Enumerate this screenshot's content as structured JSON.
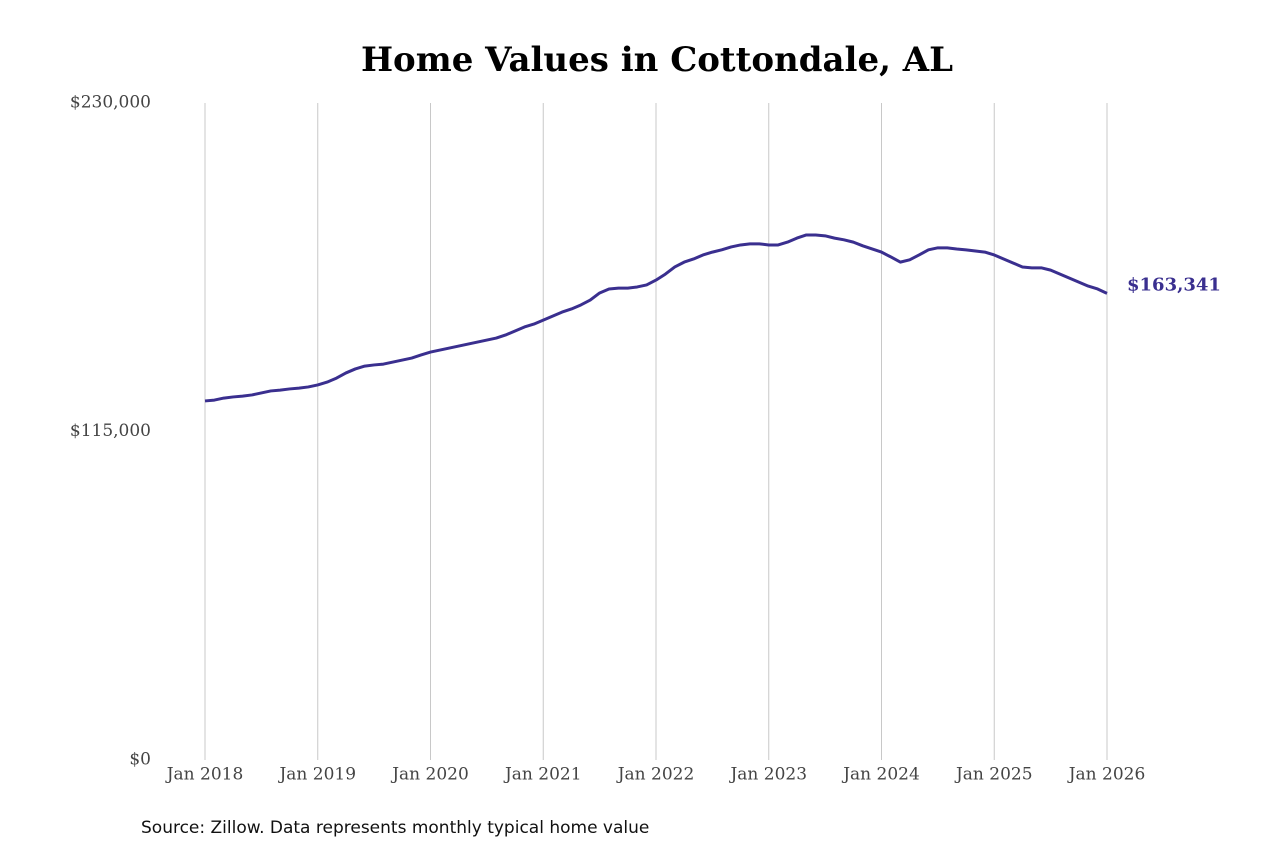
{
  "chart_data": {
    "type": "line",
    "title": "Home Values in Cottondale, AL",
    "source": "Source: Zillow. Data represents monthly typical home value",
    "categories": [
      "Jan 2018",
      null,
      null,
      null,
      null,
      null,
      null,
      null,
      null,
      null,
      null,
      null,
      "Jan 2019",
      null,
      null,
      null,
      null,
      null,
      null,
      null,
      null,
      null,
      null,
      null,
      "Jan 2020",
      null,
      null,
      null,
      null,
      null,
      null,
      null,
      null,
      null,
      null,
      null,
      "Jan 2021",
      null,
      null,
      null,
      null,
      null,
      null,
      null,
      null,
      null,
      null,
      null,
      "Jan 2022",
      null,
      null,
      null,
      null,
      null,
      null,
      null,
      null,
      null,
      null,
      null,
      "Jan 2023",
      null,
      null,
      null,
      null,
      null,
      null,
      null,
      null,
      null,
      null,
      null,
      "Jan 2024",
      null,
      null,
      null,
      null,
      null,
      null,
      null,
      null,
      null,
      null,
      null,
      "Jan 2025",
      null,
      null,
      null,
      null,
      null,
      null,
      null,
      null,
      null,
      null,
      null,
      "Jan 2026"
    ],
    "series": [
      {
        "color": "#3a2f8f",
        "values": [
          125700,
          126000,
          126700,
          127100,
          127400,
          127800,
          128500,
          129200,
          129500,
          129900,
          130200,
          130600,
          131300,
          132300,
          133700,
          135500,
          136900,
          137900,
          138300,
          138600,
          139300,
          140000,
          140700,
          141800,
          142800,
          143500,
          144200,
          144900,
          145600,
          146300,
          147000,
          147700,
          148800,
          150200,
          151600,
          152600,
          154000,
          155400,
          156800,
          157900,
          159300,
          161000,
          163500,
          164900,
          165200,
          165200,
          165600,
          166300,
          168000,
          170100,
          172600,
          174300,
          175400,
          176800,
          177800,
          178600,
          179600,
          180300,
          180700,
          180700,
          180300,
          180300,
          181300,
          182700,
          183800,
          183800,
          183500,
          182700,
          182100,
          181300,
          180000,
          178900,
          177800,
          176100,
          174300,
          175100,
          176800,
          178600,
          179300,
          179300,
          178900,
          178600,
          178200,
          177800,
          176800,
          175400,
          174000,
          172600,
          172300,
          172300,
          171500,
          170100,
          168700,
          167300,
          165900,
          164900,
          163341
        ],
        "value_labels": [
          null,
          null,
          null,
          null,
          null,
          null,
          null,
          null,
          null,
          null,
          null,
          null,
          null,
          null,
          null,
          null,
          null,
          null,
          null,
          null,
          null,
          null,
          null,
          null,
          null,
          null,
          null,
          null,
          null,
          null,
          null,
          null,
          null,
          null,
          null,
          null,
          null,
          null,
          null,
          null,
          null,
          null,
          null,
          null,
          null,
          null,
          null,
          null,
          null,
          null,
          null,
          null,
          null,
          null,
          null,
          null,
          null,
          null,
          null,
          null,
          null,
          null,
          null,
          null,
          null,
          null,
          null,
          null,
          null,
          null,
          null,
          null,
          null,
          null,
          null,
          null,
          null,
          null,
          null,
          null,
          null,
          null,
          null,
          null,
          null,
          null,
          null,
          null,
          null,
          null,
          null,
          null,
          null,
          null,
          null,
          null,
          "$163,341"
        ]
      }
    ],
    "ylim": [
      0,
      230000
    ],
    "yticks": [
      {
        "value": 0,
        "label": "$0"
      },
      {
        "value": 115000,
        "label": "$115,000"
      },
      {
        "value": 230000,
        "label": "$230,000"
      }
    ],
    "grid": "x"
  }
}
